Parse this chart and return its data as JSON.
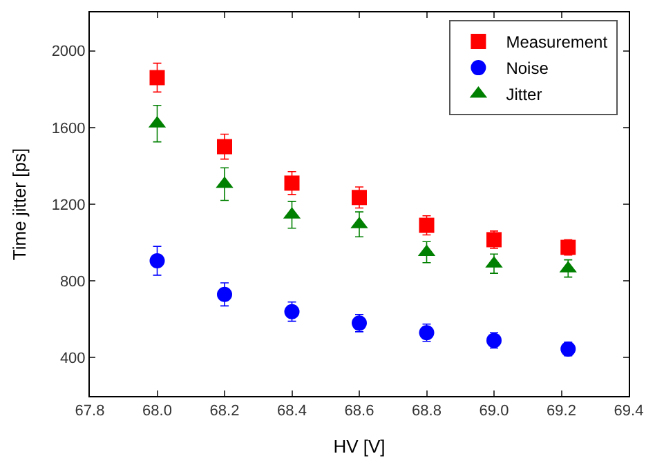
{
  "chart_data": {
    "type": "scatter",
    "xlabel": "HV [V]",
    "ylabel": "Time jitter [ps]",
    "x": [
      68.0,
      68.2,
      68.4,
      68.6,
      68.8,
      69.0,
      69.22
    ],
    "xlim": [
      67.8,
      69.4
    ],
    "xticks": [
      {
        "value": 67.8,
        "label": "67.8"
      },
      {
        "value": 68.0,
        "label": "68.0"
      },
      {
        "value": 68.2,
        "label": "68.2"
      },
      {
        "value": 68.4,
        "label": "68.4"
      },
      {
        "value": 68.6,
        "label": "68.6"
      },
      {
        "value": 68.8,
        "label": "68.8"
      },
      {
        "value": 69.0,
        "label": "69.0"
      },
      {
        "value": 69.2,
        "label": "69.2"
      },
      {
        "value": 69.4,
        "label": "69.4"
      }
    ],
    "ylim": [
      200,
      2200
    ],
    "yticks": [
      400,
      800,
      1200,
      1600,
      2000
    ],
    "legend": "top right",
    "series": [
      {
        "name": "Measurement",
        "color": "#ff0000",
        "marker": "square",
        "values": [
          1860,
          1500,
          1310,
          1235,
          1090,
          1015,
          975
        ],
        "errors": [
          75,
          65,
          60,
          55,
          50,
          45,
          40
        ]
      },
      {
        "name": "Noise",
        "color": "#0000ff",
        "marker": "circle",
        "values": [
          905,
          730,
          640,
          580,
          530,
          490,
          445
        ],
        "errors": [
          75,
          60,
          50,
          45,
          45,
          40,
          35
        ]
      },
      {
        "name": "Jitter",
        "color": "#008000",
        "marker": "triangle",
        "values": [
          1620,
          1305,
          1145,
          1095,
          950,
          890,
          865
        ],
        "errors": [
          95,
          85,
          70,
          65,
          55,
          50,
          45
        ]
      }
    ]
  }
}
